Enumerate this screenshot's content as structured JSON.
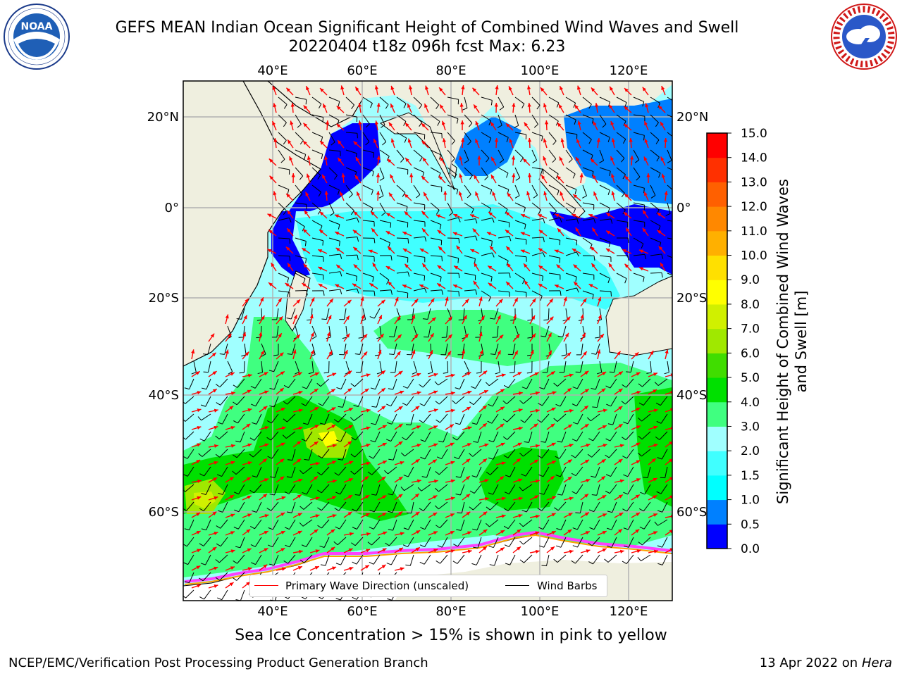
{
  "header": {
    "title_line1": "GEFS MEAN Indian Ocean Significant Height of Combined Wind Waves and Swell",
    "title_line2": "20220404 t18z 096h fcst   Max: 6.23"
  },
  "logos": {
    "left": {
      "name": "noaa-logo",
      "text": "NOAA",
      "ring_text": "NATIONAL OCEANIC AND ATMOSPHERIC ADMINISTRATION · U.S. DEPARTMENT OF COMMERCE"
    },
    "right": {
      "name": "nws-logo",
      "ring_text": "NATIONAL WEATHER SERVICE"
    }
  },
  "map": {
    "lon_ticks_top": [
      "40°E",
      "60°E",
      "80°E",
      "100°E",
      "120°E"
    ],
    "lon_ticks_bottom": [
      "40°E",
      "60°E",
      "80°E",
      "100°E",
      "120°E"
    ],
    "lat_ticks_left": [
      "20°N",
      "0°",
      "20°S",
      "40°S",
      "60°S"
    ],
    "lat_ticks_right": [
      "20°N",
      "0°",
      "20°S",
      "40°S",
      "60°S"
    ],
    "land_color": "#efefdf",
    "wave_arrow_color": "#ff0000",
    "barb_color": "#000000"
  },
  "legend": {
    "wave_direction": "Primary Wave Direction (unscaled)",
    "wind_barbs": "Wind Barbs"
  },
  "colorbar": {
    "label": "Significant Height of Combined Wind Waves and Swell [m]",
    "ticks": [
      "0.0",
      "0.5",
      "1.0",
      "1.5",
      "2.0",
      "3.0",
      "4.0",
      "5.0",
      "6.0",
      "7.0",
      "8.0",
      "9.0",
      "10.0",
      "11.0",
      "12.0",
      "13.0",
      "14.0",
      "15.0"
    ],
    "colors": [
      "#0000ff",
      "#0080ff",
      "#00ffff",
      "#40ffff",
      "#a0ffff",
      "#40ff80",
      "#00e000",
      "#40dd00",
      "#a0e800",
      "#d0f000",
      "#ffff00",
      "#ffe000",
      "#ffb000",
      "#ff8800",
      "#ff6000",
      "#ff3000",
      "#ff0000"
    ]
  },
  "caption": "Sea Ice Concentration > 15% is shown in pink to yellow",
  "footer": {
    "left": "NCEP/EMC/Verification Post Processing Product Generation Branch",
    "date": "13 Apr 2022 on ",
    "host": "Hera"
  }
}
